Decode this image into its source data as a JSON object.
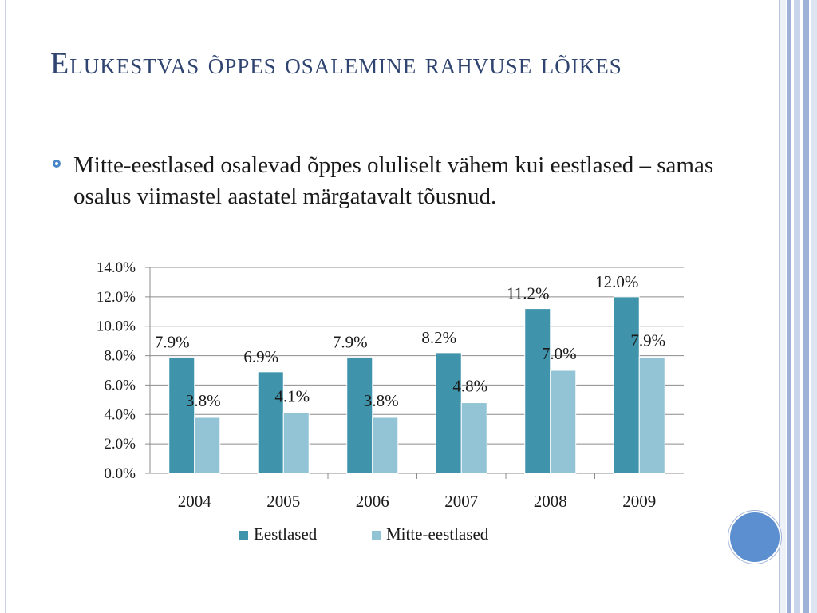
{
  "slide": {
    "title": "Elukestvas õppes osalemine rahvuse lõikes",
    "bullet": "Mitte-eestlased osalevad õppes oluliselt vähem kui eestlased – samas osalus viimastel aastatel märgatavalt tõusnud."
  },
  "colors": {
    "title": "#2f4470",
    "series1": "#3f93aa",
    "series2": "#93c4d6",
    "accent": "#5b8fd0"
  },
  "chart_data": {
    "type": "bar",
    "categories": [
      "2004",
      "2005",
      "2006",
      "2007",
      "2008",
      "2009"
    ],
    "series": [
      {
        "name": "Eestlased",
        "values": [
          7.9,
          6.9,
          7.9,
          8.2,
          11.2,
          12.0
        ],
        "labels": [
          "7.9%",
          "6.9%",
          "7.9%",
          "8.2%",
          "11.2%",
          "12.0%"
        ]
      },
      {
        "name": "Mitte-eestlased",
        "values": [
          3.8,
          4.1,
          3.8,
          4.8,
          7.0,
          7.9
        ],
        "labels": [
          "3.8%",
          "4.1%",
          "3.8%",
          "4.8%",
          "7.0%",
          "7.9%"
        ]
      }
    ],
    "ylim": [
      0,
      14
    ],
    "yticks": [
      "0.0%",
      "2.0%",
      "4.0%",
      "6.0%",
      "8.0%",
      "10.0%",
      "12.0%",
      "14.0%"
    ],
    "grid": true,
    "legend": "bottom"
  }
}
